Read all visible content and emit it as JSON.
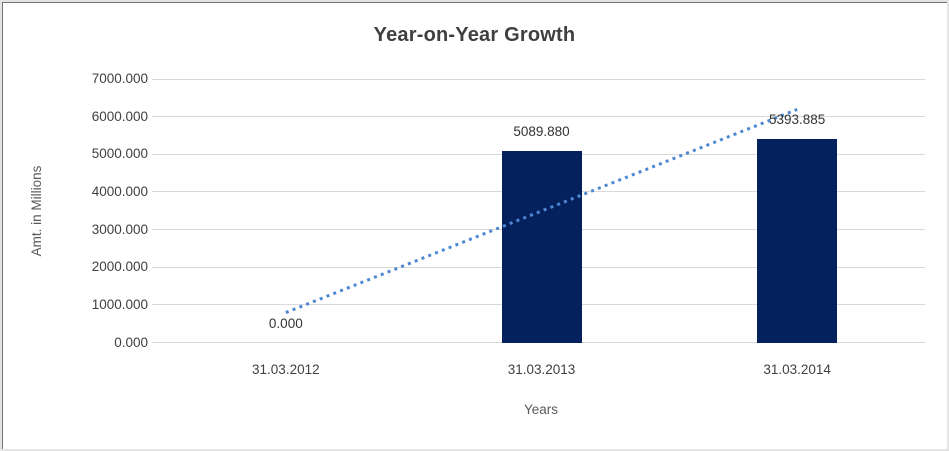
{
  "chart_data": {
    "type": "bar",
    "title": "Year-on-Year Growth",
    "xlabel": "Years",
    "ylabel": "Amt. in Millions",
    "categories": [
      "31.03.2012",
      "31.03.2013",
      "31.03.2014"
    ],
    "values": [
      0,
      5089.88,
      5393.885
    ],
    "data_labels": [
      "0.000",
      "5089.880",
      "5393.885"
    ],
    "yticks": [
      "0.000",
      "1000.000",
      "2000.000",
      "3000.000",
      "4000.000",
      "5000.000",
      "6000.000",
      "7000.000"
    ],
    "ylim": [
      0,
      7000
    ],
    "grid": "horizontal",
    "legend": "none",
    "trendline": {
      "type": "linear",
      "style": "dotted"
    },
    "colors": {
      "bar": "#04215e",
      "trendline": "#4e87d2",
      "gridline": "#d9d9d9",
      "title_text": "#3f3f3f",
      "tick_text": "#404040",
      "axis_title_text": "#595959",
      "data_label_text": "#333333"
    }
  }
}
